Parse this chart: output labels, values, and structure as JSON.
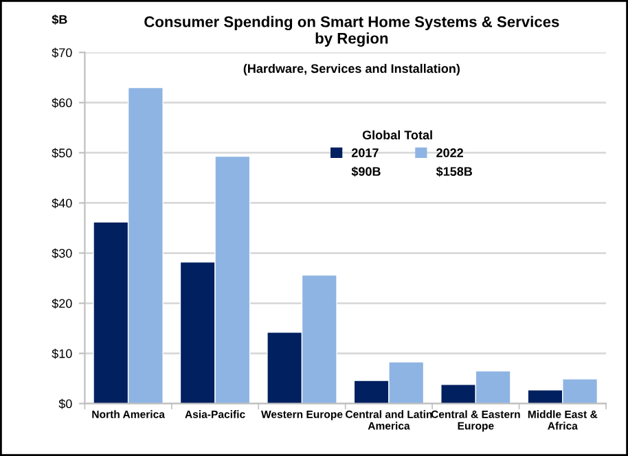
{
  "chart_data": {
    "type": "bar",
    "title": "Consumer Spending on Smart Home Systems & Services\nby Region",
    "subtitle": "(Hardware, Services and Installation)",
    "ylabel": "$B",
    "categories": [
      "North America",
      "Asia-Pacific",
      "Western Europe",
      "Central and Latin\nAmerica",
      "Central & Eastern\nEurope",
      "Middle East &\nAfrica"
    ],
    "series": [
      {
        "name": "2017",
        "color": "#002060",
        "values": [
          36.2,
          28.2,
          14.2,
          4.6,
          3.8,
          2.7
        ]
      },
      {
        "name": "2022",
        "color": "#8eb4e3",
        "values": [
          63.0,
          49.3,
          25.6,
          8.3,
          6.5,
          4.9
        ]
      }
    ],
    "ylim": [
      0,
      70
    ],
    "yticks": [
      {
        "value": 0,
        "label": "$0"
      },
      {
        "value": 10,
        "label": "$10"
      },
      {
        "value": 20,
        "label": "$20"
      },
      {
        "value": 30,
        "label": "$30"
      },
      {
        "value": 40,
        "label": "$40"
      },
      {
        "value": 50,
        "label": "$50"
      },
      {
        "value": 60,
        "label": "$60"
      },
      {
        "value": 70,
        "label": "$70"
      }
    ],
    "grid": "y",
    "legend": "top right",
    "legend_title": "Global Total",
    "annotations": [
      "$90B",
      "$158B"
    ]
  }
}
